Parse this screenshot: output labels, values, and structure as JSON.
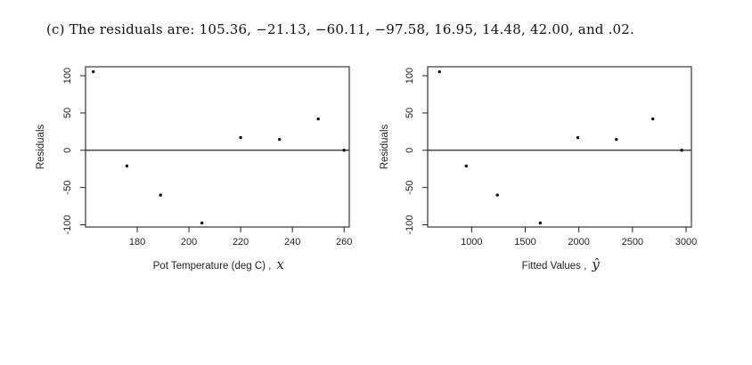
{
  "caption": "(c)  The residuals are: 105.36, −21.13, −60.11, −97.58, 16.95, 14.48, 42.00, and .02.",
  "chart_data": [
    {
      "type": "scatter",
      "title": "",
      "xlabel": "Pot Temperature (deg C) ,",
      "xlabel_handwritten": "x",
      "ylabel": "Residuals",
      "x_ticks": [
        180,
        200,
        220,
        240,
        260
      ],
      "y_ticks": [
        -100,
        -50,
        0,
        50,
        100
      ],
      "xlim": [
        160,
        262
      ],
      "ylim": [
        -103,
        112
      ],
      "reference_line_y": 0,
      "grid": false,
      "x": [
        163,
        176,
        189,
        205,
        220,
        235,
        250,
        260
      ],
      "y": [
        105.36,
        -21.13,
        -60.11,
        -97.58,
        16.95,
        14.48,
        42.0,
        0.02
      ]
    },
    {
      "type": "scatter",
      "title": "",
      "xlabel": "Fitted Values ,",
      "xlabel_handwritten": "ŷ",
      "ylabel": "Residuals",
      "x_ticks": [
        1000,
        1500,
        2000,
        2500,
        3000
      ],
      "y_ticks": [
        -100,
        -50,
        0,
        50,
        100
      ],
      "xlim": [
        590,
        3050
      ],
      "ylim": [
        -103,
        112
      ],
      "reference_line_y": 0,
      "grid": false,
      "x": [
        700,
        950,
        1240,
        1640,
        1990,
        2350,
        2690,
        2960
      ],
      "y": [
        105.36,
        -21.13,
        -60.11,
        -97.58,
        16.95,
        14.48,
        42.0,
        0.02
      ]
    }
  ]
}
